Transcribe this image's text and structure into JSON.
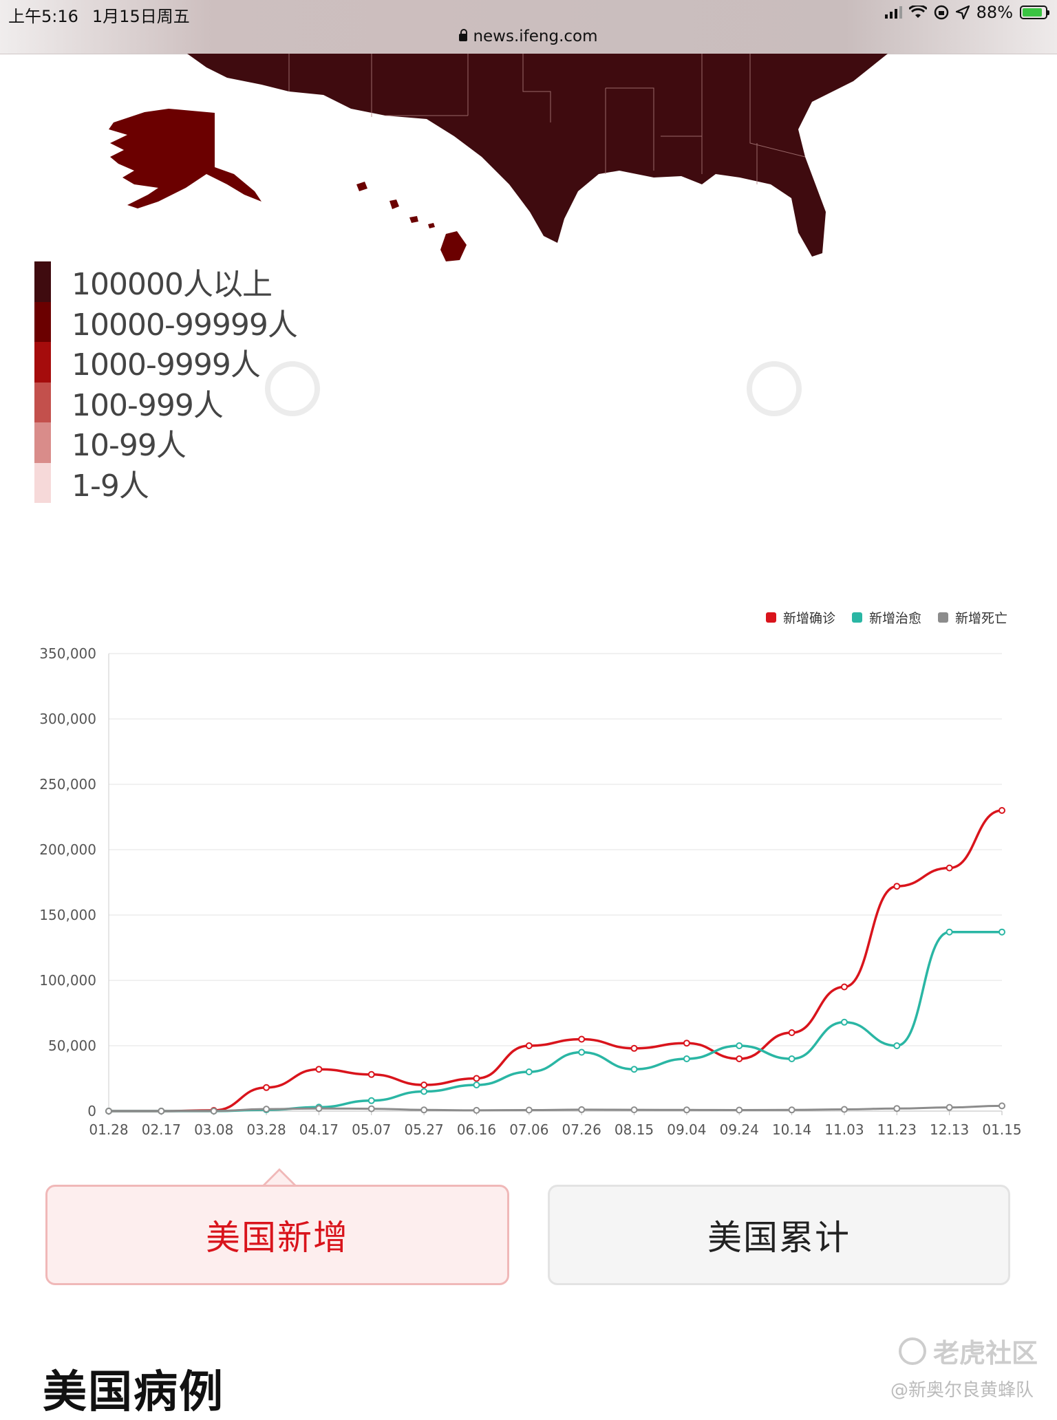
{
  "status_bar": {
    "time": "上午5:16",
    "date": "1月15日周五",
    "url": "news.ifeng.com",
    "battery": "88%",
    "battery_level": 0.88
  },
  "map": {
    "colors": {
      "level1": "#3f0b0f",
      "level2": "#6b0000",
      "level3": "#a50c0c",
      "level4": "#c3504c",
      "level5": "#d98c8a",
      "level6": "#f6d9d9"
    }
  },
  "legend": {
    "items": [
      {
        "label": "100000人以上",
        "color": "#3f0b0f"
      },
      {
        "label": "10000-99999人",
        "color": "#6b0000"
      },
      {
        "label": "1000-9999人",
        "color": "#a50c0c"
      },
      {
        "label": "100-999人",
        "color": "#c3504c"
      },
      {
        "label": "10-99人",
        "color": "#d98c8a"
      },
      {
        "label": "1-9人",
        "color": "#f6d9d9"
      }
    ]
  },
  "chart_data": {
    "type": "line",
    "x": [
      "01.28",
      "02.17",
      "03.08",
      "03.28",
      "04.17",
      "05.07",
      "05.27",
      "06.16",
      "07.06",
      "07.26",
      "08.15",
      "09.04",
      "09.24",
      "10.14",
      "11.03",
      "11.23",
      "12.13",
      "01.15"
    ],
    "ylim": [
      0,
      350000
    ],
    "yticks": [
      "350,000",
      "300,000",
      "250,000",
      "200,000",
      "150,000",
      "100,000",
      "50,000",
      "0"
    ],
    "legend_position": "top-right",
    "grid": true,
    "series": [
      {
        "name": "新增确诊",
        "color": "#d9141c",
        "values": [
          0,
          10,
          500,
          18000,
          32000,
          28000,
          20000,
          25000,
          50000,
          55000,
          48000,
          52000,
          40000,
          60000,
          95000,
          172000,
          186000,
          230000
        ]
      },
      {
        "name": "新增治愈",
        "color": "#2ab6a4",
        "values": [
          0,
          0,
          0,
          1000,
          3000,
          8000,
          15000,
          20000,
          30000,
          45000,
          32000,
          40000,
          50000,
          40000,
          68000,
          50000,
          137000,
          137000
        ]
      },
      {
        "name": "新增死亡",
        "color": "#8c8c8c",
        "values": [
          0,
          0,
          30,
          1500,
          2000,
          1800,
          900,
          600,
          800,
          1100,
          1000,
          900,
          800,
          900,
          1300,
          2000,
          2800,
          4000
        ]
      }
    ]
  },
  "tabs": {
    "new_label": "美国新增",
    "total_label": "美国累计"
  },
  "section": {
    "title": "美国病例"
  },
  "watermark": {
    "brand": "老虎社区",
    "credit": "@新奥尔良黄蜂队"
  }
}
